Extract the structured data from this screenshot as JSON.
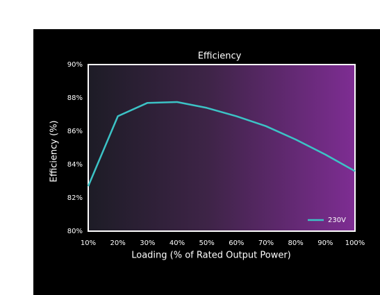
{
  "chart_data": {
    "type": "line",
    "title": "Efficiency",
    "x_label": "Loading (% of Rated Output Power)",
    "y_label": "Efficiency (%)",
    "x": [
      10,
      20,
      30,
      40,
      50,
      60,
      70,
      80,
      90,
      100
    ],
    "series": [
      {
        "name": "230V",
        "color": "#3cc3c6",
        "values": [
          82.7,
          86.9,
          87.7,
          87.75,
          87.4,
          86.9,
          86.3,
          85.5,
          84.6,
          83.6
        ]
      }
    ],
    "xlim": [
      10,
      100
    ],
    "xticks": [
      {
        "value": 10,
        "label": "10%"
      },
      {
        "value": 20,
        "label": "20%"
      },
      {
        "value": 30,
        "label": "30%"
      },
      {
        "value": 40,
        "label": "40%"
      },
      {
        "value": 50,
        "label": "50%"
      },
      {
        "value": 60,
        "label": "60%"
      },
      {
        "value": 70,
        "label": "70%"
      },
      {
        "value": 80,
        "label": "80%"
      },
      {
        "value": 90,
        "label": "90%"
      },
      {
        "value": 100,
        "label": "100%"
      }
    ],
    "ylim": [
      80,
      90
    ],
    "yticks": [
      {
        "value": 80,
        "label": "80%"
      },
      {
        "value": 82,
        "label": "82%"
      },
      {
        "value": 84,
        "label": "84%"
      },
      {
        "value": 86,
        "label": "86%"
      },
      {
        "value": 88,
        "label": "88%"
      },
      {
        "value": 90,
        "label": "90%"
      }
    ],
    "legend": "lower right"
  }
}
